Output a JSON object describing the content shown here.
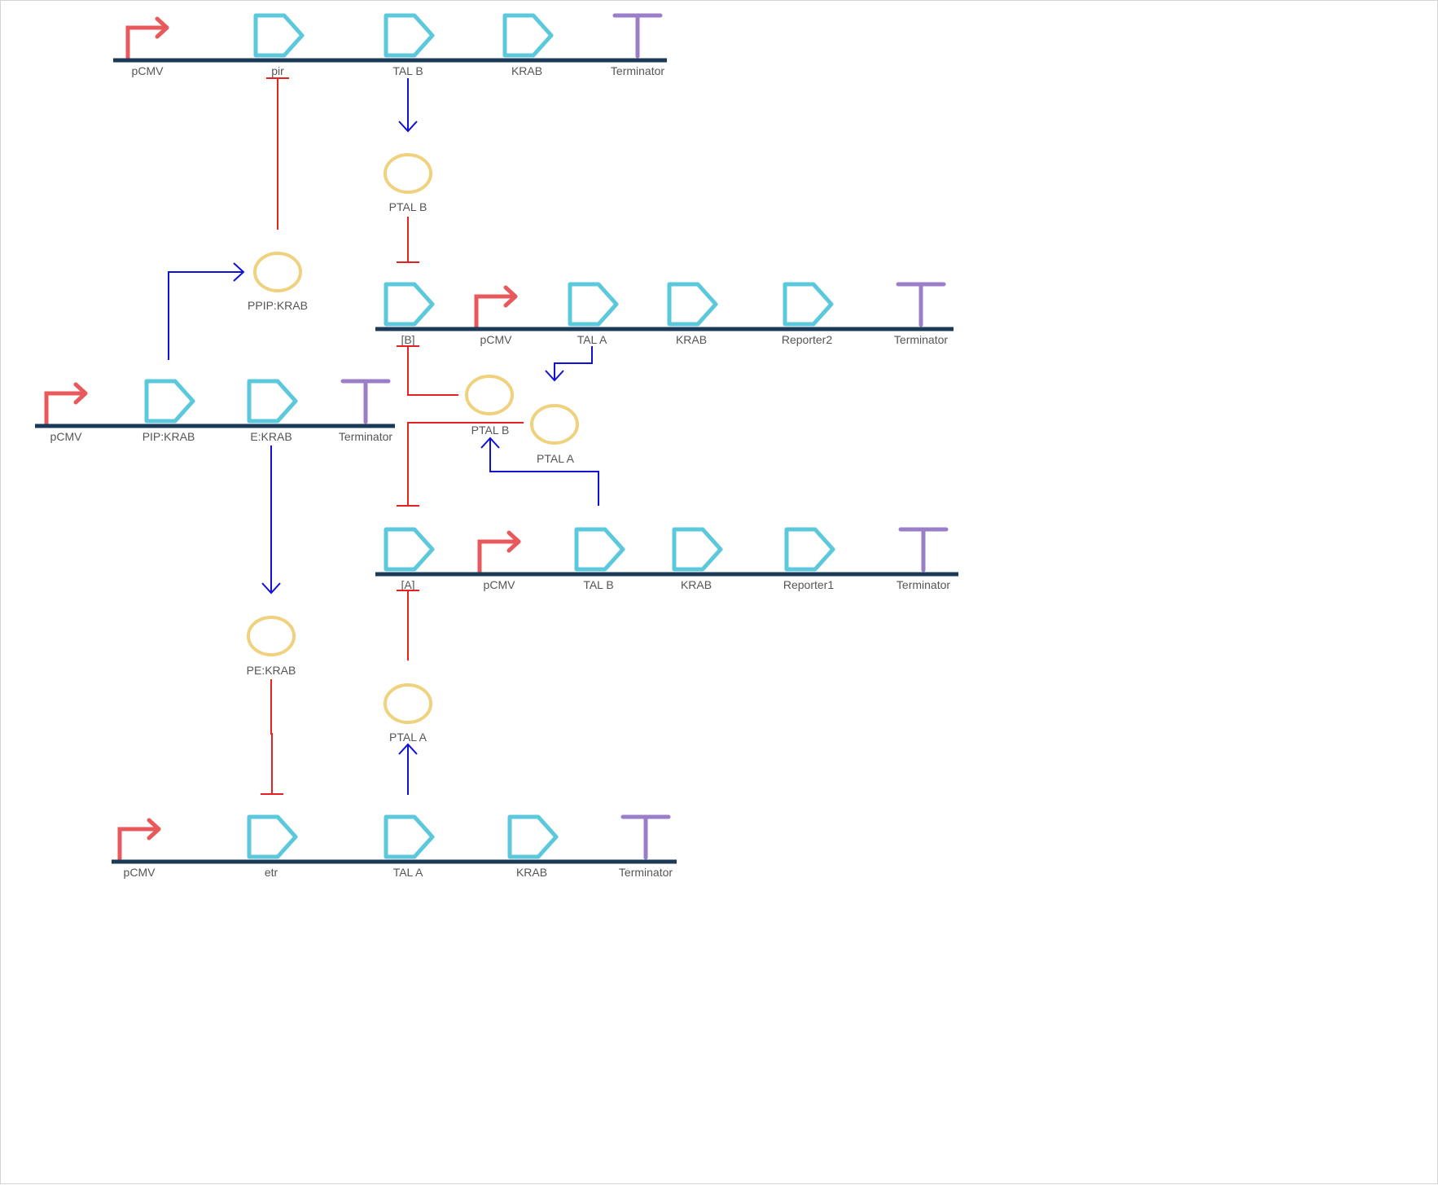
{
  "colors": {
    "backbone": "#1b3a57",
    "promoter": "#e8595c",
    "cds": "#5bc8dc",
    "terminator": "#9b7ec8",
    "protein": "#efd17e",
    "activation": "#1010d8",
    "repression": "#e42222"
  },
  "constructs": [
    {
      "id": "c1",
      "parts": [
        {
          "type": "promoter",
          "label": "pCMV"
        },
        {
          "type": "cds",
          "label": "pir"
        },
        {
          "type": "cds",
          "label": "TAL B"
        },
        {
          "type": "cds",
          "label": "KRAB"
        },
        {
          "type": "terminator",
          "label": "Terminator"
        }
      ]
    },
    {
      "id": "c2",
      "parts": [
        {
          "type": "cds",
          "label": "[B]"
        },
        {
          "type": "promoter",
          "label": "pCMV"
        },
        {
          "type": "cds",
          "label": "TAL A"
        },
        {
          "type": "cds",
          "label": "KRAB"
        },
        {
          "type": "cds",
          "label": "Reporter2"
        },
        {
          "type": "terminator",
          "label": "Terminator"
        }
      ]
    },
    {
      "id": "c3",
      "parts": [
        {
          "type": "promoter",
          "label": "pCMV"
        },
        {
          "type": "cds",
          "label": "PIP:KRAB"
        },
        {
          "type": "cds",
          "label": "E:KRAB"
        },
        {
          "type": "terminator",
          "label": "Terminator"
        }
      ]
    },
    {
      "id": "c4",
      "parts": [
        {
          "type": "cds",
          "label": "[A]"
        },
        {
          "type": "promoter",
          "label": "pCMV"
        },
        {
          "type": "cds",
          "label": "TAL B"
        },
        {
          "type": "cds",
          "label": "KRAB"
        },
        {
          "type": "cds",
          "label": "Reporter1"
        },
        {
          "type": "terminator",
          "label": "Terminator"
        }
      ]
    },
    {
      "id": "c5",
      "parts": [
        {
          "type": "promoter",
          "label": "pCMV"
        },
        {
          "type": "cds",
          "label": "etr"
        },
        {
          "type": "cds",
          "label": "TAL A"
        },
        {
          "type": "cds",
          "label": "KRAB"
        },
        {
          "type": "terminator",
          "label": "Terminator"
        }
      ]
    }
  ],
  "proteins": [
    {
      "id": "p1",
      "label": "PTAL B"
    },
    {
      "id": "p2",
      "label": "PPIP:KRAB"
    },
    {
      "id": "p3",
      "label": "PTAL B"
    },
    {
      "id": "p4",
      "label": "PTAL A"
    },
    {
      "id": "p5",
      "label": "PE:KRAB"
    },
    {
      "id": "p6",
      "label": "PTAL A"
    }
  ],
  "interactions": [
    {
      "type": "activation",
      "from": "c1.TAL B",
      "to": "p1"
    },
    {
      "type": "repression",
      "from": "p1",
      "to": "c2.[B]"
    },
    {
      "type": "repression",
      "from": "p2",
      "to": "c1.pir"
    },
    {
      "type": "activation",
      "from": "c3.PIP:KRAB",
      "to": "p2"
    },
    {
      "type": "repression",
      "from": "p3",
      "to": "c2.[B]"
    },
    {
      "type": "activation",
      "from": "c2.TAL A",
      "to": "p4"
    },
    {
      "type": "repression",
      "from": "p4",
      "to": "c4.[A]"
    },
    {
      "type": "activation",
      "from": "c4.TAL B",
      "to": "p3"
    },
    {
      "type": "activation",
      "from": "c3.E:KRAB",
      "to": "p5"
    },
    {
      "type": "repression",
      "from": "p5",
      "to": "c5.etr"
    },
    {
      "type": "repression",
      "from": "p6",
      "to": "c4.[A]"
    },
    {
      "type": "activation",
      "from": "c5.TAL A",
      "to": "p6"
    }
  ]
}
